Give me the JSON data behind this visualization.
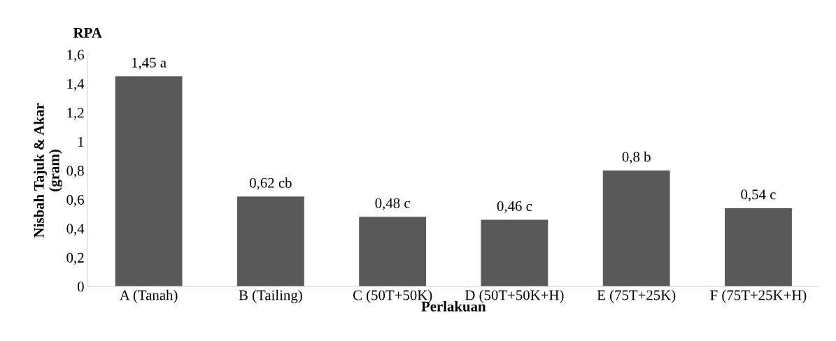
{
  "chart_data": {
    "type": "bar",
    "title": "RPA",
    "xlabel": "Perlakuan",
    "ylabel": "Nisbah Tajuk & Akar\n(gram)",
    "categories": [
      "A (Tanah)",
      "B (Tailing)",
      "C (50T+50K)",
      "D (50T+50K+H)",
      "E (75T+25K)",
      "F (75T+25K+H)"
    ],
    "values": [
      1.45,
      0.62,
      0.48,
      0.46,
      0.8,
      0.54
    ],
    "value_labels": [
      "1,45 a",
      "0,62 cb",
      "0,48 c",
      "0,46 c",
      "0,8 b",
      "0,54 c"
    ],
    "color": "#595959",
    "ylim": [
      0,
      1.6
    ],
    "yticks": [
      0,
      {
        "value": 0.2,
        "label": "0,2"
      },
      {
        "value": 0.4,
        "label": "0,4"
      },
      {
        "value": 0.6,
        "label": "0,6"
      },
      {
        "value": 0.8,
        "label": "0,8"
      },
      1,
      {
        "value": 1.2,
        "label": "1,2"
      },
      {
        "value": 1.4,
        "label": "1,4"
      },
      {
        "value": 1.6,
        "label": "1,6"
      }
    ],
    "grid": false,
    "legend": false
  }
}
